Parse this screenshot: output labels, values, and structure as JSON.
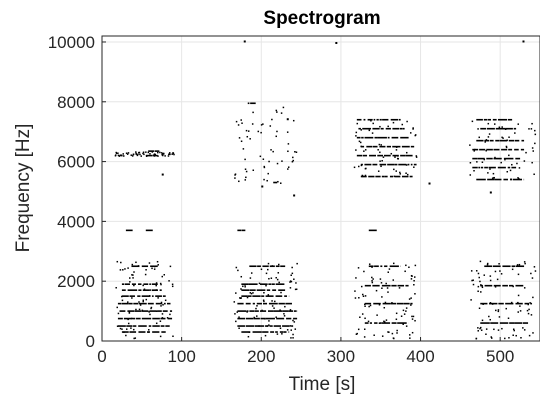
{
  "chart_data": {
    "type": "scatter",
    "title": "Spectrogram",
    "xlabel": "Time [s]",
    "ylabel": "Frequency [Hz]",
    "xlim": [
      0,
      550
    ],
    "ylim": [
      0,
      10200
    ],
    "xticks": [
      0,
      100,
      200,
      300,
      400,
      500
    ],
    "yticks": [
      0,
      2000,
      4000,
      6000,
      8000,
      10000
    ],
    "grid": true,
    "colors": {
      "marks": "#000000",
      "grid": "#e6e6e6",
      "axis": "#262626",
      "background": "#ffffff"
    },
    "segments": [
      {
        "name": "segment-1",
        "t_start": 15,
        "t_end": 90,
        "lines": [
          {
            "f": 300,
            "t0": 25,
            "t1": 80
          },
          {
            "f": 500,
            "t0": 20,
            "t1": 85
          },
          {
            "f": 750,
            "t0": 20,
            "t1": 88
          },
          {
            "f": 1000,
            "t0": 22,
            "t1": 88
          },
          {
            "f": 1250,
            "t0": 20,
            "t1": 86
          },
          {
            "f": 1500,
            "t0": 25,
            "t1": 80
          },
          {
            "f": 1700,
            "t0": 25,
            "t1": 75
          },
          {
            "f": 1900,
            "t0": 25,
            "t1": 70
          },
          {
            "f": 2500,
            "t0": 37,
            "t1": 70
          },
          {
            "f": 3700,
            "t0": 30,
            "t1": 40
          },
          {
            "f": 3700,
            "t0": 55,
            "t1": 65
          },
          {
            "f": 6200,
            "t0": 55,
            "t1": 70
          },
          {
            "f": 6350,
            "t0": 58,
            "t1": 72
          }
        ]
      },
      {
        "name": "segment-2",
        "t_start": 165,
        "t_end": 245,
        "lines": [
          {
            "f": 300,
            "t0": 175,
            "t1": 235
          },
          {
            "f": 500,
            "t0": 170,
            "t1": 240
          },
          {
            "f": 750,
            "t0": 170,
            "t1": 245
          },
          {
            "f": 1000,
            "t0": 170,
            "t1": 245
          },
          {
            "f": 1250,
            "t0": 170,
            "t1": 240
          },
          {
            "f": 1500,
            "t0": 175,
            "t1": 235
          },
          {
            "f": 1700,
            "t0": 175,
            "t1": 230
          },
          {
            "f": 1900,
            "t0": 175,
            "t1": 230
          },
          {
            "f": 2500,
            "t0": 185,
            "t1": 230
          },
          {
            "f": 3700,
            "t0": 170,
            "t1": 180
          },
          {
            "f": 5300,
            "t0": 215,
            "t1": 220
          },
          {
            "f": 7950,
            "t0": 183,
            "t1": 195
          }
        ]
      },
      {
        "name": "segment-3",
        "t_start": 315,
        "t_end": 395,
        "lines": [
          {
            "f": 600,
            "t0": 330,
            "t1": 385
          },
          {
            "f": 1250,
            "t0": 330,
            "t1": 390
          },
          {
            "f": 1850,
            "t0": 330,
            "t1": 385
          },
          {
            "f": 2500,
            "t0": 335,
            "t1": 375
          },
          {
            "f": 3700,
            "t0": 335,
            "t1": 345
          },
          {
            "f": 5500,
            "t0": 325,
            "t1": 390
          },
          {
            "f": 5900,
            "t0": 325,
            "t1": 395
          },
          {
            "f": 6200,
            "t0": 320,
            "t1": 390
          },
          {
            "f": 6500,
            "t0": 325,
            "t1": 392
          },
          {
            "f": 6800,
            "t0": 320,
            "t1": 385
          },
          {
            "f": 7100,
            "t0": 322,
            "t1": 380
          },
          {
            "f": 7400,
            "t0": 320,
            "t1": 375
          }
        ]
      },
      {
        "name": "segment-4",
        "t_start": 460,
        "t_end": 545,
        "lines": [
          {
            "f": 600,
            "t0": 475,
            "t1": 535
          },
          {
            "f": 1250,
            "t0": 475,
            "t1": 540
          },
          {
            "f": 1850,
            "t0": 475,
            "t1": 530
          },
          {
            "f": 2500,
            "t0": 480,
            "t1": 530
          },
          {
            "f": 5400,
            "t0": 470,
            "t1": 530
          },
          {
            "f": 5800,
            "t0": 465,
            "t1": 520
          },
          {
            "f": 6100,
            "t0": 465,
            "t1": 525
          },
          {
            "f": 6400,
            "t0": 465,
            "t1": 530
          },
          {
            "f": 6700,
            "t0": 470,
            "t1": 530
          },
          {
            "f": 7100,
            "t0": 475,
            "t1": 520
          },
          {
            "f": 7400,
            "t0": 470,
            "t1": 515
          }
        ]
      }
    ],
    "scatter_points": [
      {
        "t": 178,
        "f": 10050
      },
      {
        "t": 293,
        "f": 10000
      },
      {
        "t": 528,
        "f": 10050
      },
      {
        "t": 232,
        "f": 7450
      },
      {
        "t": 75,
        "f": 5600
      },
      {
        "t": 200,
        "f": 5200
      },
      {
        "t": 240,
        "f": 4900
      },
      {
        "t": 487,
        "f": 5000
      },
      {
        "t": 410,
        "f": 5300
      }
    ]
  }
}
